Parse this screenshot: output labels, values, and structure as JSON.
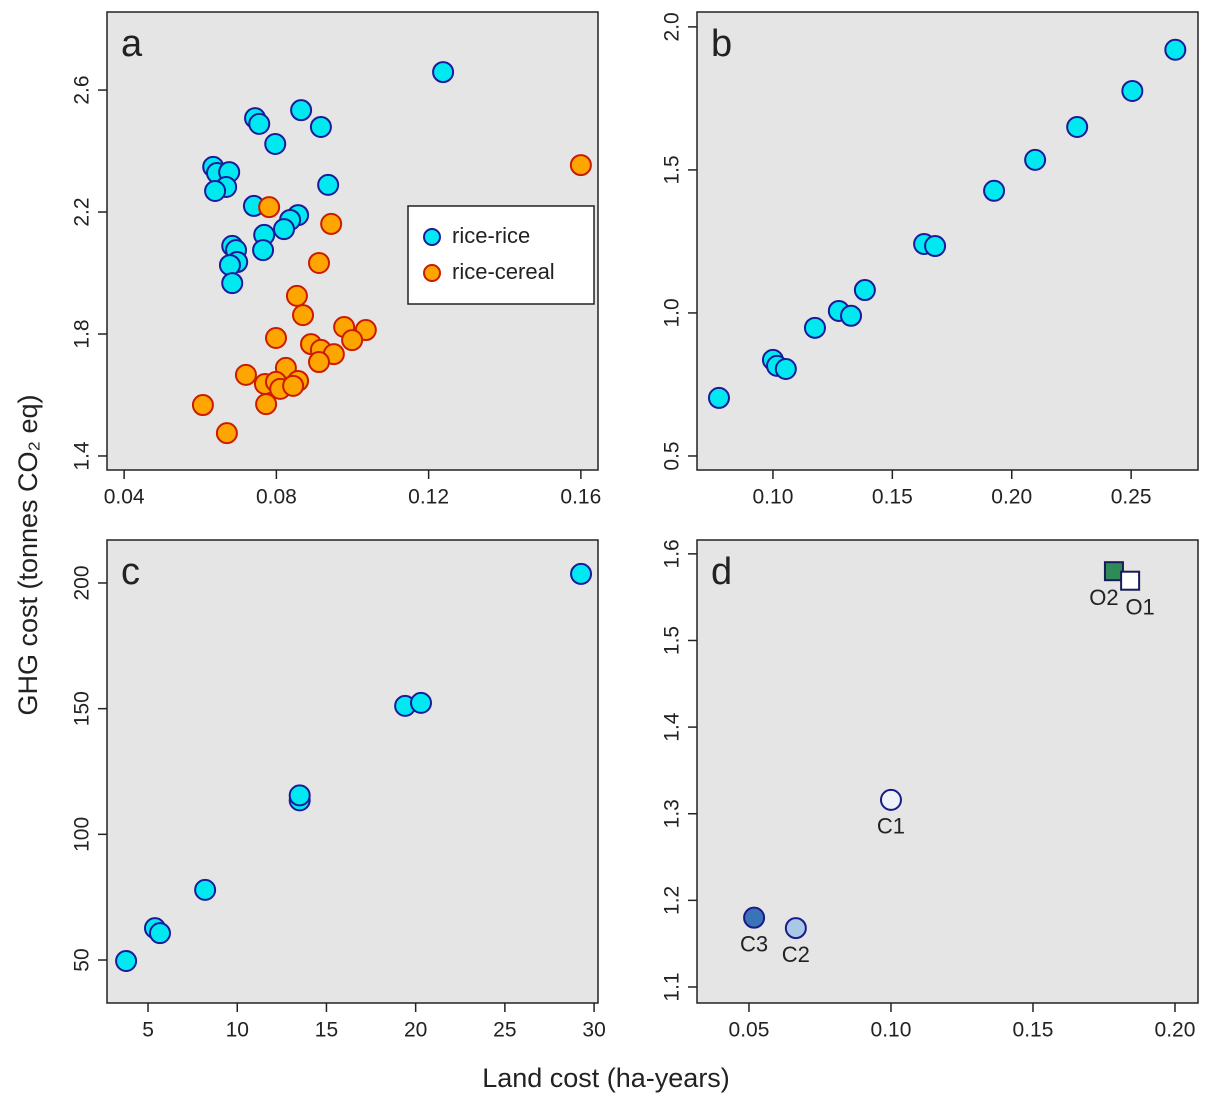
{
  "xlabel": "Land cost (ha-years)",
  "ylabel": "GHG cost (tonnes CO₂ eq)",
  "chart_data": [
    {
      "type": "scatter",
      "label": "a",
      "legend": "right",
      "xlim": [
        0.0355,
        0.1645
      ],
      "ylim": [
        1.354,
        2.856
      ],
      "xticks": [
        0.04,
        0.08,
        0.12,
        0.16
      ],
      "yticks": [
        1.4,
        1.8,
        2.2,
        2.6
      ],
      "series": [
        {
          "name": "rice-rice",
          "color": "#00e8f0",
          "edge": "#1a1a9a",
          "marker": "circle",
          "x": [
            0.1238,
            0.0744,
            0.0755,
            0.0865,
            0.0917,
            0.0797,
            0.0634,
            0.0644,
            0.0676,
            0.0668,
            0.0639,
            0.0936,
            0.0741,
            0.0857,
            0.0836,
            0.082,
            0.0768,
            0.0684,
            0.0694,
            0.0765,
            0.0697,
            0.0678,
            0.0684
          ],
          "values": [
            2.659,
            2.508,
            2.489,
            2.534,
            2.479,
            2.423,
            2.348,
            2.328,
            2.331,
            2.282,
            2.269,
            2.289,
            2.22,
            2.19,
            2.174,
            2.144,
            2.125,
            2.089,
            2.075,
            2.075,
            2.036,
            2.026,
            1.967
          ]
        },
        {
          "name": "rice-cereal",
          "color": "#ffa500",
          "edge": "#cc1a00",
          "marker": "circle",
          "x": [
            0.16,
            0.0781,
            0.0944,
            0.0912,
            0.0854,
            0.087,
            0.0799,
            0.0978,
            0.1035,
            0.0999,
            0.0891,
            0.0917,
            0.0951,
            0.0912,
            0.0825,
            0.072,
            0.077,
            0.0799,
            0.0857,
            0.081,
            0.0844,
            0.0773,
            0.0607,
            0.067
          ],
          "values": [
            2.354,
            2.216,
            2.161,
            2.033,
            1.925,
            1.862,
            1.787,
            1.823,
            1.813,
            1.78,
            1.767,
            1.748,
            1.734,
            1.708,
            1.689,
            1.666,
            1.636,
            1.643,
            1.646,
            1.62,
            1.63,
            1.57,
            1.567,
            1.475
          ]
        }
      ]
    },
    {
      "type": "scatter",
      "label": "b",
      "xlim": [
        0.0682,
        0.278
      ],
      "ylim": [
        0.451,
        2.052
      ],
      "xticks": [
        {
          "value": 0.1,
          "label": "0.10"
        },
        0.15,
        {
          "value": 0.2,
          "label": "0.20"
        },
        0.25
      ],
      "yticks": [
        0.5,
        {
          "value": 1,
          "label": "1.0"
        },
        1.5,
        {
          "value": 2,
          "label": "2.0"
        }
      ],
      "series": [
        {
          "color": "#00e8f0",
          "edge": "#1a1a9a",
          "marker": "circle",
          "x": [
            0.0774,
            0.1,
            0.1017,
            0.1054,
            0.1176,
            0.1276,
            0.1327,
            0.1385,
            0.1633,
            0.1679,
            0.1926,
            0.2098,
            0.2274,
            0.2505,
            0.2685
          ],
          "values": [
            0.703,
            0.836,
            0.815,
            0.804,
            0.948,
            1.007,
            0.99,
            1.08,
            1.241,
            1.234,
            1.427,
            1.535,
            1.65,
            1.776,
            1.92
          ]
        }
      ]
    },
    {
      "type": "scatter",
      "label": "c",
      "xlim": [
        2.7,
        30.22
      ],
      "ylim": [
        32.9,
        217.1
      ],
      "xticks": [
        5,
        10,
        15,
        20,
        25,
        30
      ],
      "yticks": [
        50,
        100,
        150,
        200
      ],
      "series": [
        {
          "color": "#00e8f0",
          "edge": "#1a1a9a",
          "marker": "circle",
          "x": [
            3.77,
            5.39,
            5.67,
            8.2,
            13.5,
            13.5,
            19.41,
            20.3,
            29.27
          ],
          "values": [
            49.6,
            62.7,
            60.7,
            77.9,
            113.5,
            115.5,
            151.1,
            152.3,
            203.6
          ]
        }
      ]
    },
    {
      "type": "scatter",
      "label": "d",
      "xlim": [
        0.0317,
        0.2081
      ],
      "ylim": [
        1.0815,
        1.616
      ],
      "xticks": [
        0.05,
        {
          "value": 0.1,
          "label": "0.10"
        },
        0.15,
        {
          "value": 0.2,
          "label": "0.20"
        }
      ],
      "yticks": [
        1.1,
        1.2,
        1.3,
        1.4,
        1.5,
        1.6
      ],
      "series": [
        {
          "name": "O2",
          "color": "#2e8b57",
          "edge": "#1a1a5a",
          "marker": "square",
          "x": [
            0.1785
          ],
          "values": [
            1.58
          ]
        },
        {
          "name": "O1",
          "color": "#ffffff",
          "edge": "#1a1a5a",
          "marker": "square",
          "x": [
            0.1842
          ],
          "values": [
            1.569
          ]
        },
        {
          "name": "C1",
          "color": "#eef2fa",
          "edge": "#1a1a8a",
          "marker": "circle",
          "x": [
            0.1
          ],
          "values": [
            1.316
          ]
        },
        {
          "name": "C3",
          "color": "#3a74b8",
          "edge": "#1a1a8a",
          "marker": "circle",
          "x": [
            0.0518
          ],
          "values": [
            1.18
          ]
        },
        {
          "name": "C2",
          "color": "#a9c8e8",
          "edge": "#1a1a8a",
          "marker": "circle",
          "x": [
            0.0665
          ],
          "values": [
            1.168
          ]
        }
      ]
    }
  ]
}
